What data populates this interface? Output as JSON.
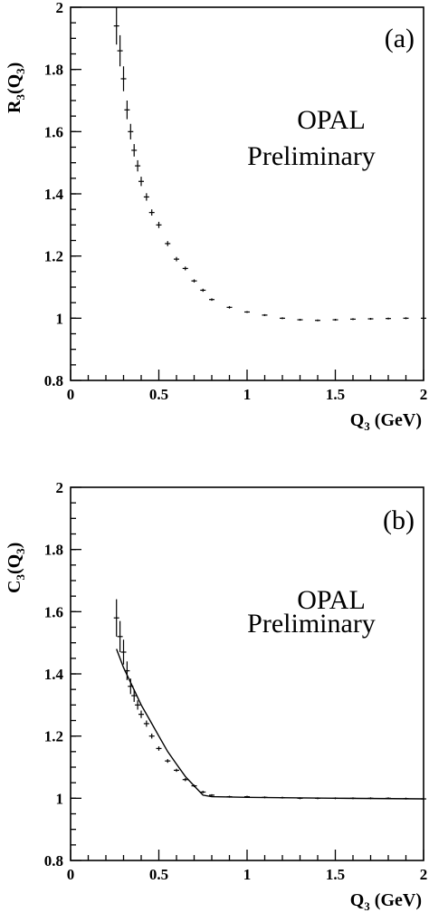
{
  "chart_data": [
    {
      "panel": "(a)",
      "type": "scatter",
      "xlabel": "Q3 (GeV)",
      "ylabel": "R3(Q3)",
      "xlim": [
        0,
        2
      ],
      "ylim": [
        0.8,
        2
      ],
      "xticks": [
        0,
        0.5,
        1,
        1.5,
        2
      ],
      "xtick_labels": [
        "0",
        "0.5",
        "1",
        "1.5",
        "2"
      ],
      "yticks": [
        0.8,
        1,
        1.2,
        1.4,
        1.6,
        1.8,
        2
      ],
      "ytick_labels": [
        "0.8",
        "1",
        "1.2",
        "1.4",
        "1.6",
        "1.8",
        "2"
      ],
      "annotations": [
        "OPAL",
        "Preliminary"
      ],
      "grid": false,
      "series": [
        {
          "x": [
            0.26,
            0.28,
            0.3,
            0.32,
            0.34,
            0.36,
            0.38,
            0.4,
            0.43,
            0.46,
            0.5,
            0.55,
            0.6,
            0.65,
            0.7,
            0.75,
            0.8,
            0.9,
            1.0,
            1.1,
            1.2,
            1.3,
            1.4,
            1.5,
            1.6,
            1.7,
            1.8,
            1.9,
            2.0
          ],
          "y": [
            1.94,
            1.86,
            1.77,
            1.67,
            1.6,
            1.54,
            1.49,
            1.44,
            1.39,
            1.34,
            1.3,
            1.24,
            1.19,
            1.16,
            1.12,
            1.09,
            1.06,
            1.035,
            1.02,
            1.01,
            1.0,
            0.995,
            0.993,
            0.995,
            0.997,
            0.998,
            0.999,
            1.0,
            1.0
          ],
          "err": [
            0.06,
            0.05,
            0.04,
            0.03,
            0.025,
            0.02,
            0.018,
            0.015,
            0.012,
            0.01,
            0.01,
            0.008,
            0.007,
            0.006,
            0.005,
            0.005,
            0.004,
            0.004,
            0.003,
            0.003,
            0.003,
            0.003,
            0.003,
            0.003,
            0.003,
            0.003,
            0.003,
            0.003,
            0.003
          ]
        }
      ]
    },
    {
      "panel": "(b)",
      "type": "scatter",
      "xlabel": "Q3 (GeV)",
      "ylabel": "C3(Q3)",
      "xlim": [
        0,
        2
      ],
      "ylim": [
        0.8,
        2
      ],
      "xticks": [
        0,
        0.5,
        1,
        1.5,
        2
      ],
      "xtick_labels": [
        "0",
        "0.5",
        "1",
        "1.5",
        "2"
      ],
      "yticks": [
        0.8,
        1,
        1.2,
        1.4,
        1.6,
        1.8,
        2
      ],
      "ytick_labels": [
        "0.8",
        "1",
        "1.2",
        "1.4",
        "1.6",
        "1.8",
        "2"
      ],
      "annotations": [
        "OPAL",
        "Preliminary"
      ],
      "grid": false,
      "series": [
        {
          "x": [
            0.26,
            0.28,
            0.3,
            0.32,
            0.34,
            0.36,
            0.38,
            0.4,
            0.43,
            0.46,
            0.5,
            0.55,
            0.6,
            0.65,
            0.7,
            0.75,
            0.8,
            0.9,
            1.0,
            1.1,
            1.2,
            1.3,
            1.4,
            1.5,
            1.6,
            1.7,
            1.8,
            1.9,
            2.0
          ],
          "y": [
            1.58,
            1.52,
            1.47,
            1.41,
            1.36,
            1.33,
            1.3,
            1.27,
            1.24,
            1.2,
            1.16,
            1.12,
            1.09,
            1.06,
            1.04,
            1.02,
            1.01,
            1.005,
            1.005,
            1.003,
            1.002,
            1.0,
            1.0,
            1.0,
            1.0,
            1.0,
            1.0,
            0.999,
            0.998
          ],
          "err": [
            0.06,
            0.05,
            0.04,
            0.03,
            0.025,
            0.02,
            0.015,
            0.012,
            0.01,
            0.008,
            0.007,
            0.006,
            0.005,
            0.005,
            0.004,
            0.004,
            0.003,
            0.003,
            0.003,
            0.003,
            0.003,
            0.003,
            0.003,
            0.003,
            0.003,
            0.003,
            0.003,
            0.003,
            0.003
          ]
        },
        {
          "type": "line",
          "x": [
            0.26,
            0.3,
            0.35,
            0.4,
            0.45,
            0.5,
            0.55,
            0.6,
            0.65,
            0.7,
            0.75,
            0.8,
            1.0,
            1.5,
            2.0
          ],
          "y": [
            1.48,
            1.42,
            1.36,
            1.3,
            1.25,
            1.2,
            1.15,
            1.11,
            1.07,
            1.04,
            1.01,
            1.005,
            1.003,
            1.0,
            0.998
          ]
        }
      ]
    }
  ]
}
